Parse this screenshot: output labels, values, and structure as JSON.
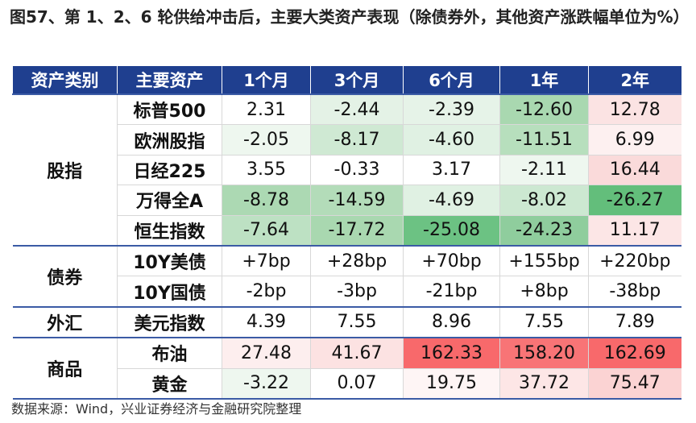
{
  "title": "图57、第 1、2、6 轮供给冲击后，主要大类资产表现（除债券外，其他资产涨跌幅单位为%）",
  "table": {
    "header": [
      "资产类别",
      "主要资产",
      "1个月",
      "3个月",
      "6个月",
      "1年",
      "2年"
    ],
    "groups": [
      {
        "name": "股指",
        "rows": [
          {
            "asset": "标普500",
            "values": [
              "2.31",
              "-2.44",
              "-2.39",
              "-12.60",
              "12.78"
            ],
            "colors": [
              "#ffffff",
              "#e4f2e6",
              "#e6f3e8",
              "#a9d8b0",
              "#fbe3e3"
            ]
          },
          {
            "asset": "欧洲股指",
            "values": [
              "-2.05",
              "-8.17",
              "-4.60",
              "-11.51",
              "6.99"
            ],
            "colors": [
              "#eef7ef",
              "#cfe9d3",
              "#e0f1e3",
              "#b7dfbd",
              "#fdf0f0"
            ]
          },
          {
            "asset": "日经225",
            "values": [
              "3.55",
              "-0.33",
              "3.17",
              "-2.11",
              "16.44"
            ],
            "colors": [
              "#ffffff",
              "#ffffff",
              "#ffffff",
              "#eef7ef",
              "#fadada"
            ]
          },
          {
            "asset": "万得全A",
            "values": [
              "-8.78",
              "-14.59",
              "-4.69",
              "-8.02",
              "-26.27"
            ],
            "colors": [
              "#acd9b3",
              "#b3dcb9",
              "#e0f1e3",
              "#cce8d1",
              "#63be7b"
            ]
          },
          {
            "asset": "恒生指数",
            "values": [
              "-7.64",
              "-17.72",
              "-25.08",
              "-24.23",
              "11.17"
            ],
            "colors": [
              "#bde1c3",
              "#a9d8b0",
              "#6cc283",
              "#8fcd9d",
              "#fce6e6"
            ]
          }
        ]
      },
      {
        "name": "债券",
        "rows": [
          {
            "asset": "10Y美债",
            "values": [
              "+7bp",
              "+28bp",
              "+70bp",
              "+155bp",
              "+220bp"
            ],
            "colors": [
              "#ffffff",
              "#ffffff",
              "#ffffff",
              "#ffffff",
              "#ffffff"
            ]
          },
          {
            "asset": "10Y国债",
            "values": [
              "-2bp",
              "-3bp",
              "-21bp",
              "+8bp",
              "-38bp"
            ],
            "colors": [
              "#ffffff",
              "#ffffff",
              "#ffffff",
              "#ffffff",
              "#ffffff"
            ]
          }
        ]
      },
      {
        "name": "外汇",
        "rows": [
          {
            "asset": "美元指数",
            "values": [
              "4.39",
              "7.55",
              "8.96",
              "7.55",
              "7.89"
            ],
            "colors": [
              "#ffffff",
              "#ffffff",
              "#ffffff",
              "#ffffff",
              "#ffffff"
            ]
          }
        ]
      },
      {
        "name": "商品",
        "rows": [
          {
            "asset": "布油",
            "values": [
              "27.48",
              "41.67",
              "162.33",
              "158.20",
              "162.69"
            ],
            "colors": [
              "#fdeeee",
              "#fce2e2",
              "#f8696b",
              "#f87476",
              "#f8696b"
            ]
          },
          {
            "asset": "黄金",
            "values": [
              "-3.22",
              "0.07",
              "19.75",
              "37.72",
              "75.47"
            ],
            "colors": [
              "#eef7ef",
              "#ffffff",
              "#fef5f5",
              "#fde6e6",
              "#fbd3d3"
            ]
          }
        ]
      }
    ]
  },
  "source": "数据来源：Wind，兴业证券经济与金融研究院整理"
}
